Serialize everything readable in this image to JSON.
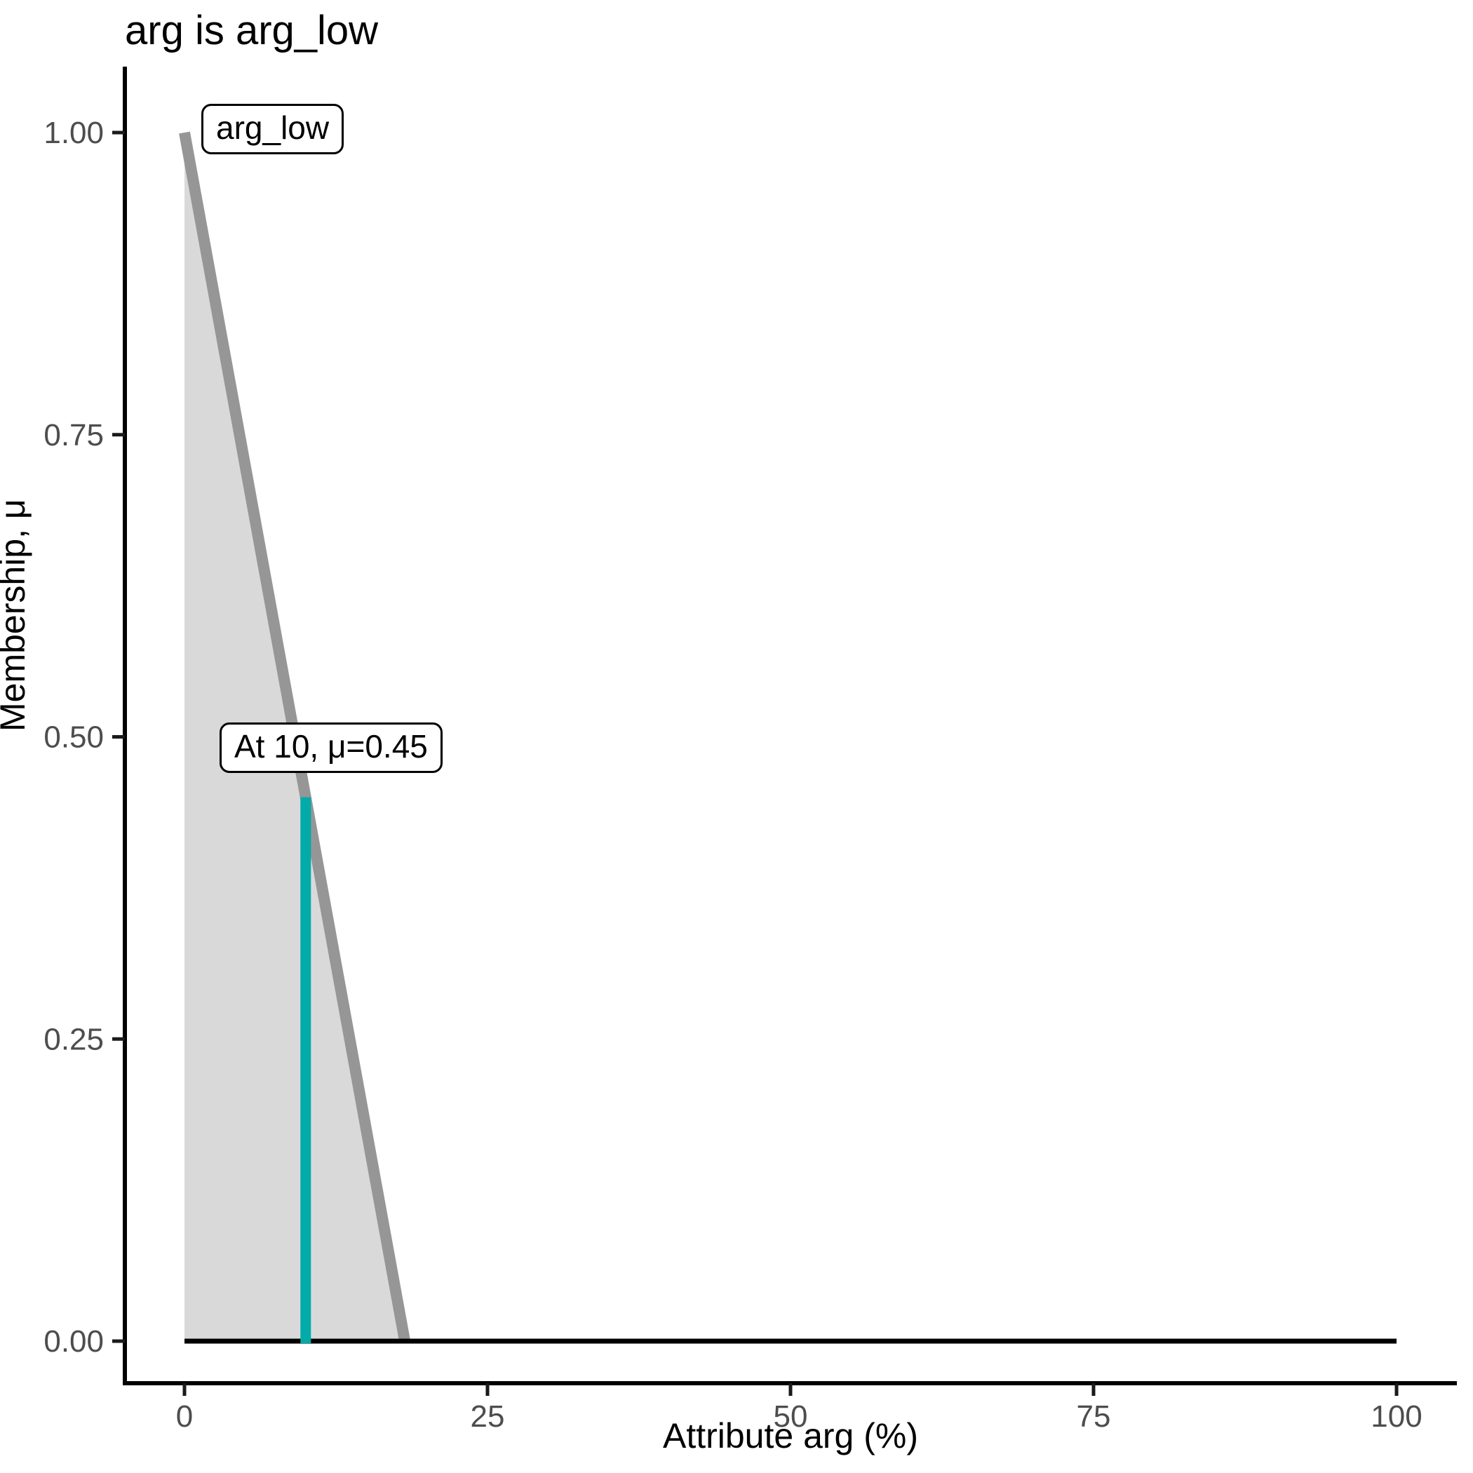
{
  "title": "arg is arg_low",
  "chart_data": {
    "type": "area",
    "title": "arg is arg_low",
    "xlabel": "Attribute arg (%)",
    "ylabel": "Membership, μ",
    "xlim": [
      0,
      100
    ],
    "ylim": [
      0,
      1
    ],
    "grid": "off",
    "legend": "none",
    "xticks": [
      {
        "value": 0,
        "label": "0"
      },
      {
        "value": 25,
        "label": "25"
      },
      {
        "value": 50,
        "label": "50"
      },
      {
        "value": 75,
        "label": "75"
      },
      {
        "value": 100,
        "label": "100"
      }
    ],
    "yticks": [
      {
        "value": 0.0,
        "label": "0.00"
      },
      {
        "value": 0.25,
        "label": "0.25"
      },
      {
        "value": 0.5,
        "label": "0.50"
      },
      {
        "value": 0.75,
        "label": "0.75"
      },
      {
        "value": 1.0,
        "label": "1.00"
      }
    ],
    "membership_function": {
      "name": "arg_low",
      "line_color": "#969696",
      "fill_color": "#D9D9D9",
      "points": [
        [
          0,
          1.0
        ],
        [
          18.18,
          0.0
        ]
      ]
    },
    "baseline": {
      "color": "#000000",
      "points": [
        [
          0,
          0
        ],
        [
          100,
          0
        ]
      ]
    },
    "evaluation": {
      "x": 10,
      "mu": 0.45,
      "color": "#00ABA9"
    },
    "annotations": [
      {
        "label": "arg_low",
        "x": 1.4,
        "mu": 1.0
      },
      {
        "label": "At 10, μ=0.45",
        "x": 13.1,
        "mu": 0.49
      }
    ],
    "colors": {
      "axis_line": "#000000",
      "tick_mark": "#1a1a1a",
      "tick_label": "#4D4D4D",
      "title_text": "#000000"
    }
  }
}
